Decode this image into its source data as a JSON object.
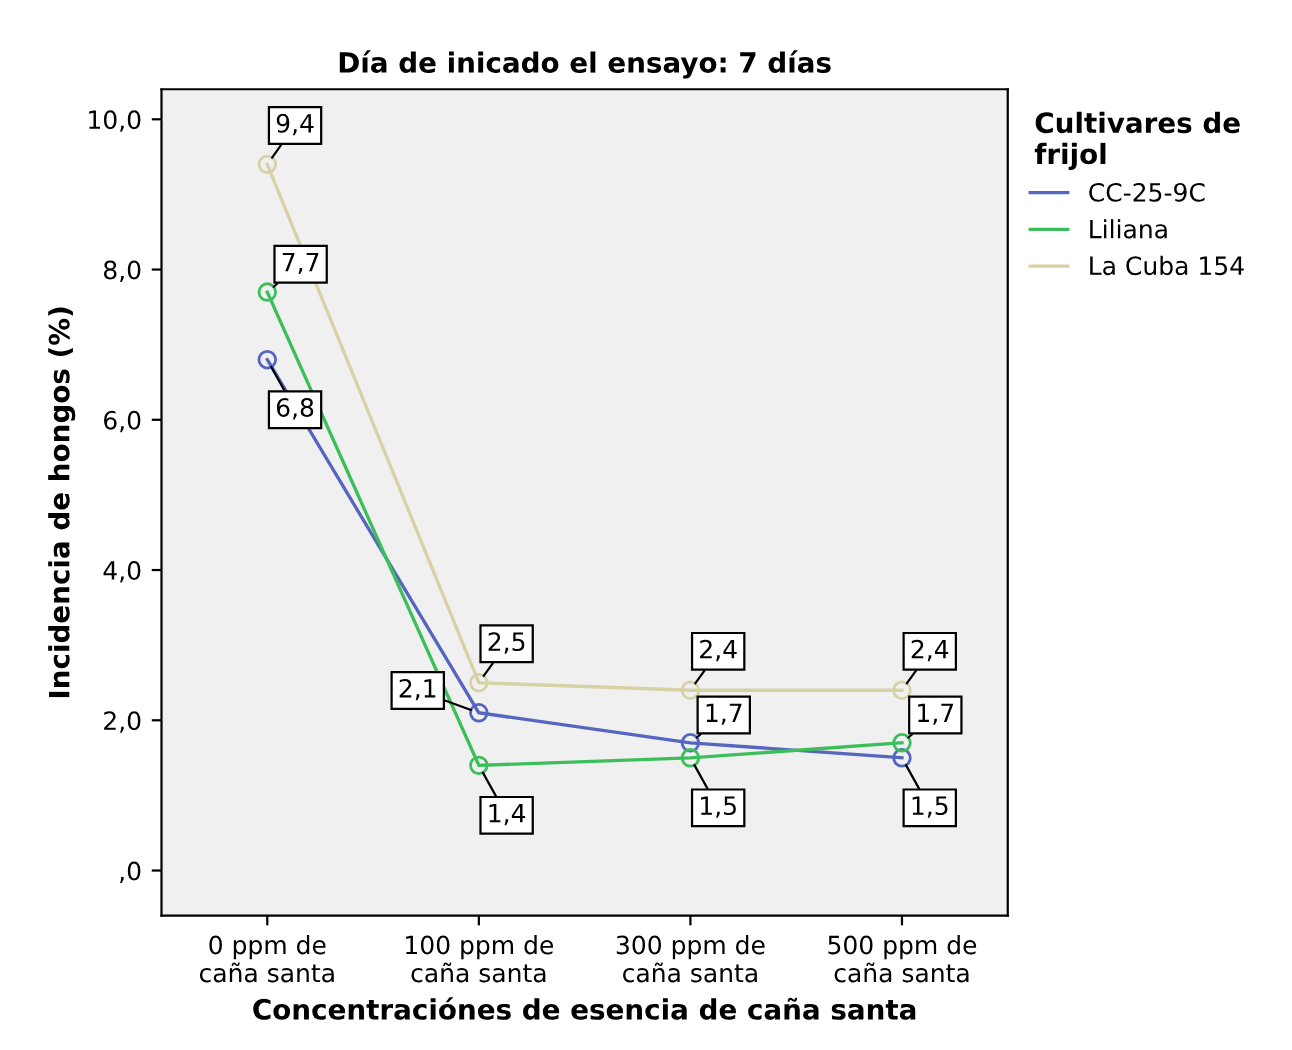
{
  "chart_data": {
    "type": "line",
    "title": "Día de inicado el ensayo: 7 días",
    "xlabel": "Concentraciónes de esencia de caña santa",
    "ylabel": "Incidencia de hongos (%)",
    "legend_title": "Cultivares de\nfrijol",
    "categories": [
      "0 ppm de\ncaña santa",
      "100 ppm de\ncaña santa",
      "300 ppm de\ncaña santa",
      "500 ppm de\ncaña santa"
    ],
    "series": [
      {
        "name": "CC-25-9C",
        "color": "#5566c0",
        "values": [
          6.8,
          2.1,
          1.7,
          1.5
        ],
        "value_labels": [
          "6,8",
          "2,1",
          "1,7",
          "1,5"
        ]
      },
      {
        "name": "Liliana",
        "color": "#3cbf5a",
        "values": [
          7.7,
          1.4,
          1.5,
          1.7
        ],
        "value_labels": [
          "7,7",
          "1,4",
          "1,5",
          "1,7"
        ]
      },
      {
        "name": "La Cuba 154",
        "color": "#d6d2a6",
        "values": [
          9.4,
          2.5,
          2.4,
          2.4
        ],
        "value_labels": [
          "9,4",
          "2,5",
          "2,4",
          "2,4"
        ]
      }
    ],
    "ylim": [
      -0.6,
      10.4
    ],
    "yticks": [
      {
        "value": 0,
        "label": ",0"
      },
      {
        "value": 2,
        "label": "2,0"
      },
      {
        "value": 4,
        "label": "4,0"
      },
      {
        "value": 6,
        "label": "6,0"
      },
      {
        "value": 8,
        "label": "8,0"
      },
      {
        "value": 10,
        "label": "10,0"
      }
    ],
    "marker": "circle",
    "line_style": "solid",
    "grid": false,
    "legend": "right"
  }
}
